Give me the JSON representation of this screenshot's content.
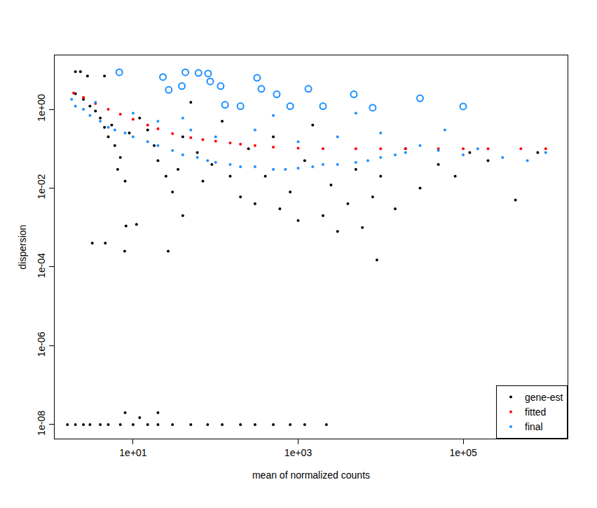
{
  "chart_data": {
    "type": "scatter",
    "log": true,
    "grid": false,
    "legend": "bottom right",
    "x_label": "mean of normalized counts",
    "y_label": "dispersion",
    "xlim": [
      1.12,
      1840000
    ],
    "ylim": [
      4.4e-09,
      23.4
    ],
    "xticks": [
      {
        "value": 10,
        "label": "1e+01"
      },
      {
        "value": 1000,
        "label": "1e+03"
      },
      {
        "value": 100000,
        "label": "1e+05"
      }
    ],
    "yticks": [
      {
        "value": 1e-08,
        "label": "1e-08"
      },
      {
        "value": 1e-06,
        "label": "1e-06"
      },
      {
        "value": 0.0001,
        "label": "1e-04"
      },
      {
        "value": 0.01,
        "label": "1e-02"
      },
      {
        "value": 1,
        "label": "1e+00"
      }
    ],
    "series": [
      {
        "name": "gene-est",
        "color": "#000000",
        "marker": "circle",
        "x": [
          2,
          2.3,
          2.8,
          4.5,
          2,
          2.5,
          3,
          3.5,
          4,
          4.5,
          5,
          6,
          7,
          6.5,
          8,
          5.5,
          9,
          12,
          15,
          18,
          20,
          25,
          30,
          35,
          40,
          50,
          60,
          70,
          90,
          120,
          150,
          200,
          250,
          300,
          400,
          500,
          600,
          800,
          1000,
          1200,
          1500,
          2000,
          2500,
          3000,
          4000,
          5000,
          6000,
          8000,
          10000,
          15000,
          20000,
          30000,
          50000,
          80000,
          120000,
          200000,
          430000,
          800000,
          4.6,
          7.9,
          26.6,
          9000,
          3.2,
          8.2,
          11,
          40,
          1.6,
          2,
          2.5,
          3,
          4,
          5,
          7,
          10,
          15,
          20,
          30,
          50,
          80,
          120,
          200,
          300,
          500,
          800,
          1200,
          2200,
          8,
          20,
          12
        ],
        "y": [
          9,
          9,
          7,
          7,
          2.5,
          1.8,
          1.2,
          0.9,
          0.6,
          0.35,
          0.2,
          0.12,
          0.06,
          0.03,
          0.015,
          0.4,
          0.25,
          0.6,
          0.3,
          0.12,
          0.05,
          0.02,
          0.008,
          0.03,
          0.2,
          1.5,
          0.08,
          0.015,
          0.04,
          0.5,
          0.02,
          0.006,
          0.1,
          0.004,
          0.02,
          0.2,
          0.003,
          0.008,
          0.0015,
          0.05,
          0.4,
          0.002,
          0.012,
          0.0008,
          0.004,
          0.03,
          0.001,
          0.006,
          0.02,
          0.003,
          0.1,
          0.01,
          0.04,
          0.02,
          0.08,
          0.05,
          0.005,
          0.08,
          0.0004,
          0.00025,
          0.00025,
          0.00015,
          0.0004,
          0.0011,
          0.0012,
          0.002,
          1e-08,
          1e-08,
          1e-08,
          1e-08,
          1e-08,
          1e-08,
          1e-08,
          1e-08,
          1e-08,
          1e-08,
          1e-08,
          1e-08,
          1e-08,
          1e-08,
          1e-08,
          1e-08,
          1e-08,
          1e-08,
          1e-08,
          1e-08,
          2e-08,
          2e-08,
          1.5e-08
        ]
      },
      {
        "name": "fitted",
        "color": "#ff0000",
        "marker": "circle",
        "x": [
          1.9,
          2.5,
          3.5,
          5,
          7,
          10,
          15,
          20,
          30,
          50,
          70,
          100,
          150,
          200,
          300,
          500,
          1000,
          2000,
          5000,
          10000,
          20000,
          50000,
          100000,
          200000,
          500000,
          1000000
        ],
        "y": [
          2.6,
          2.0,
          1.4,
          1.0,
          0.75,
          0.56,
          0.4,
          0.32,
          0.24,
          0.19,
          0.17,
          0.155,
          0.14,
          0.13,
          0.12,
          0.11,
          0.103,
          0.1,
          0.1,
          0.1,
          0.1,
          0.1,
          0.1,
          0.1,
          0.1,
          0.1
        ]
      },
      {
        "name": "final",
        "color": "#1e90ff",
        "marker": "circle",
        "x": [
          1.8,
          2,
          2.5,
          3,
          3.5,
          4,
          5,
          6,
          8,
          10,
          10,
          15,
          20,
          20,
          30,
          40,
          50,
          60,
          80,
          100,
          100,
          150,
          200,
          300,
          300,
          500,
          700,
          1000,
          1000,
          1500,
          2000,
          3000,
          3000,
          5000,
          7000,
          10000,
          10000,
          15000,
          20000,
          30000,
          50000,
          60000,
          100000,
          150000,
          300000,
          600000,
          1000000,
          40,
          500,
          5000
        ],
        "y": [
          1.8,
          1.2,
          1,
          0.7,
          1.5,
          0.5,
          0.35,
          0.3,
          0.25,
          0.2,
          0.8,
          0.15,
          0.12,
          0.5,
          0.09,
          0.07,
          0.3,
          0.06,
          0.05,
          0.045,
          0.2,
          0.04,
          0.035,
          0.035,
          0.3,
          0.03,
          0.03,
          0.032,
          0.15,
          0.035,
          0.04,
          0.04,
          0.2,
          0.045,
          0.05,
          0.06,
          0.25,
          0.07,
          0.08,
          0.12,
          0.09,
          0.3,
          0.07,
          0.1,
          0.06,
          0.05,
          0.08,
          0.6,
          0.7,
          0.8
        ]
      }
    ],
    "outliers": {
      "color": "#1e90ff",
      "marker": "circle-open",
      "x": [
        6.8,
        23,
        43,
        62,
        81,
        86,
        27,
        318,
        358,
        550,
        1330,
        4730,
        30000,
        100000,
        115,
        39,
        130,
        200,
        800,
        2000,
        8000
      ],
      "y": [
        8.7,
        6.6,
        8.7,
        8.4,
        8.1,
        5.1,
        3.1,
        6.3,
        3.3,
        2.4,
        3.3,
        2.4,
        1.9,
        1.18,
        3.9,
        3.9,
        1.3,
        1.2,
        1.2,
        1.2,
        1.1
      ]
    }
  }
}
